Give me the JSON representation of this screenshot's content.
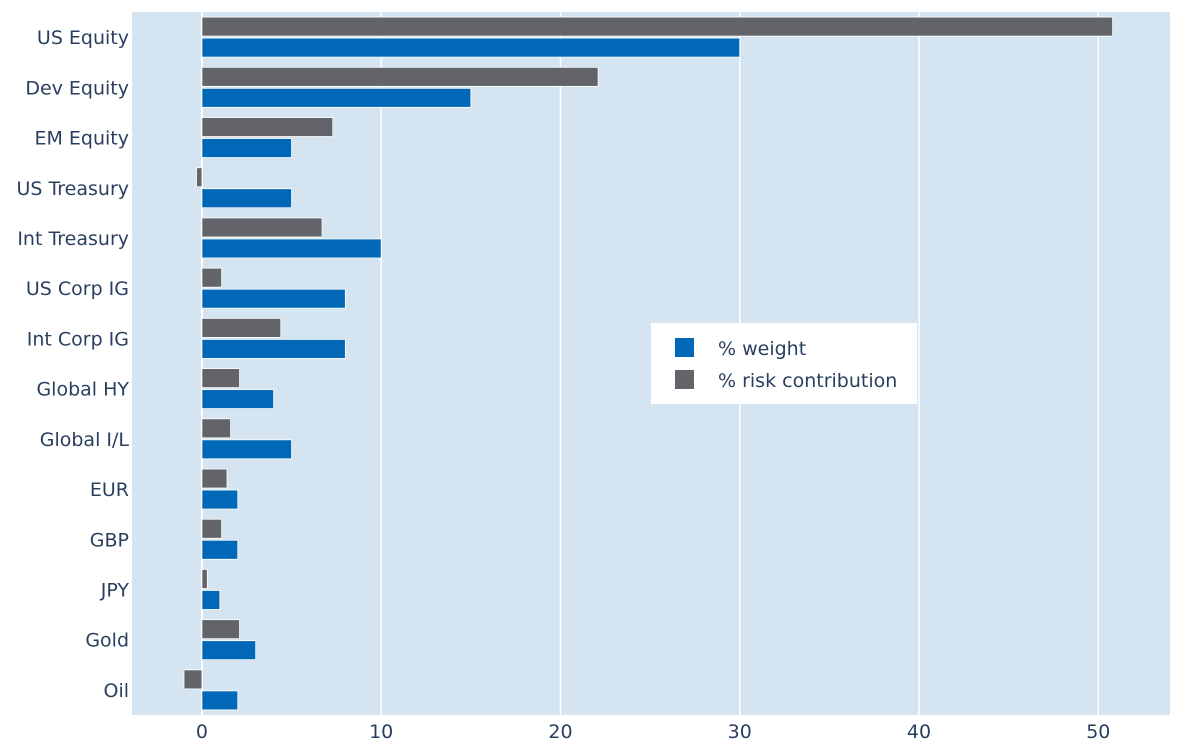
{
  "colors": {
    "plot_background": "#d4e4f1",
    "grid": "#ffffff",
    "weight": "#0068b7",
    "risk": "#626469",
    "text": "#2a3f5f",
    "legend_background": "#ffffff"
  },
  "chart_data": {
    "type": "bar",
    "orientation": "horizontal",
    "categories": [
      "US Equity",
      "Dev Equity",
      "EM Equity",
      "US Treasury",
      "Int Treasury",
      "US Corp IG",
      "Int Corp IG",
      "Global HY",
      "Global I/L",
      "EUR",
      "GBP",
      "JPY",
      "Gold",
      "Oil"
    ],
    "series": [
      {
        "name": "% weight",
        "color": "#0068b7",
        "values": [
          30,
          15,
          5,
          5,
          10,
          8,
          8,
          4,
          5,
          2,
          2,
          1,
          3,
          2
        ]
      },
      {
        "name": "% risk contribution",
        "color": "#626469",
        "values": [
          50.8,
          22.1,
          7.3,
          -0.3,
          6.7,
          1.1,
          4.4,
          2.1,
          1.6,
          1.4,
          1.1,
          0.3,
          2.1,
          -1.0
        ]
      }
    ],
    "xlim": [
      -3.9,
      54.0
    ],
    "xticks": [
      0,
      10,
      20,
      30,
      40,
      50
    ],
    "grid": true,
    "legend_position": "center-right"
  }
}
